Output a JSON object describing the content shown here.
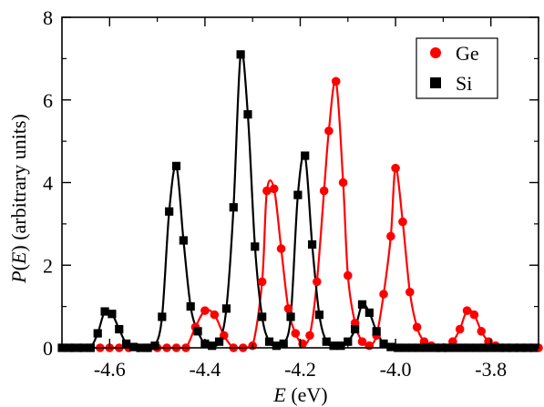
{
  "chart_data": {
    "type": "line",
    "xlabel_italic": "E",
    "xlabel_unit": " (eV)",
    "ylabel_italic_1": "P",
    "ylabel_paren_open": "(",
    "ylabel_italic_2": "E",
    "ylabel_rest": ") (arbitrary units)",
    "xlim": [
      -4.7,
      -3.7
    ],
    "ylim": [
      0,
      8
    ],
    "xticks": [
      -4.6,
      -4.4,
      -4.2,
      -4.0,
      -3.8
    ],
    "xtick_labels": [
      "-4.6",
      "-4.4",
      "-4.2",
      "-4.0",
      "-3.8"
    ],
    "yticks": [
      0,
      2,
      4,
      6,
      8
    ],
    "ytick_labels": [
      "0",
      "2",
      "4",
      "6",
      "8"
    ],
    "legend_position": "top-right",
    "series": [
      {
        "name": "Ge",
        "color": "#ff0000",
        "marker": "circle",
        "x": [
          -4.68,
          -4.66,
          -4.64,
          -4.62,
          -4.6,
          -4.58,
          -4.56,
          -4.54,
          -4.52,
          -4.5,
          -4.48,
          -4.46,
          -4.44,
          -4.42,
          -4.4,
          -4.38,
          -4.36,
          -4.34,
          -4.32,
          -4.3,
          -4.28,
          -4.27,
          -4.255,
          -4.24,
          -4.225,
          -4.21,
          -4.195,
          -4.18,
          -4.165,
          -4.15,
          -4.14,
          -4.125,
          -4.11,
          -4.1,
          -4.085,
          -4.07,
          -4.055,
          -4.04,
          -4.025,
          -4.01,
          -4.0,
          -3.985,
          -3.97,
          -3.955,
          -3.94,
          -3.925,
          -3.91,
          -3.895,
          -3.88,
          -3.865,
          -3.85,
          -3.835,
          -3.82,
          -3.805,
          -3.79,
          -3.775,
          -3.76,
          -3.745,
          -3.73,
          -3.715,
          -3.7
        ],
        "y": [
          0,
          0,
          0,
          0,
          0,
          0,
          0,
          0,
          0,
          0,
          0,
          0,
          0,
          0.5,
          0.9,
          0.8,
          0.3,
          0,
          0,
          0.05,
          1.6,
          3.8,
          3.85,
          2.4,
          0.95,
          0.35,
          0.1,
          0.3,
          1.6,
          3.8,
          5.25,
          6.45,
          4.0,
          1.75,
          0.6,
          0.15,
          0.05,
          0.3,
          1.3,
          2.7,
          4.35,
          3.05,
          1.35,
          0.5,
          0.15,
          0.05,
          0,
          0,
          0.15,
          0.45,
          0.9,
          0.8,
          0.4,
          0.15,
          0.05,
          0,
          0,
          0,
          0,
          0,
          0
        ]
      },
      {
        "name": "Si",
        "color": "#000000",
        "marker": "square",
        "x": [
          -4.7,
          -4.685,
          -4.67,
          -4.655,
          -4.64,
          -4.625,
          -4.61,
          -4.595,
          -4.58,
          -4.565,
          -4.55,
          -4.535,
          -4.52,
          -4.505,
          -4.49,
          -4.475,
          -4.46,
          -4.445,
          -4.43,
          -4.415,
          -4.4,
          -4.385,
          -4.37,
          -4.355,
          -4.34,
          -4.325,
          -4.31,
          -4.295,
          -4.28,
          -4.265,
          -4.25,
          -4.235,
          -4.22,
          -4.205,
          -4.19,
          -4.175,
          -4.16,
          -4.145,
          -4.13,
          -4.115,
          -4.1,
          -4.085,
          -4.07,
          -4.055,
          -4.04,
          -4.025,
          -4.01,
          -3.995,
          -3.98,
          -3.965,
          -3.95,
          -3.935,
          -3.92,
          -3.905,
          -3.89,
          -3.875,
          -3.86,
          -3.845,
          -3.83,
          -3.815,
          -3.8,
          -3.785,
          -3.77,
          -3.755,
          -3.74,
          -3.725,
          -3.71
        ],
        "y": [
          0,
          0,
          0,
          0,
          0,
          0.35,
          0.88,
          0.82,
          0.45,
          0.1,
          0.02,
          0,
          0,
          0.05,
          0.75,
          3.3,
          4.4,
          2.6,
          1.0,
          0.4,
          0.1,
          0.05,
          0.15,
          0.95,
          3.4,
          7.1,
          5.65,
          2.45,
          0.75,
          0.15,
          0.05,
          0.1,
          0.75,
          3.7,
          4.65,
          2.5,
          0.8,
          0.15,
          0.05,
          0.05,
          0.15,
          0.45,
          1.05,
          0.85,
          0.4,
          0.1,
          0.02,
          0,
          0,
          0,
          0,
          0,
          0,
          0,
          0,
          0,
          0,
          0,
          0,
          0,
          0,
          0,
          0,
          0,
          0,
          0,
          0
        ]
      }
    ]
  }
}
